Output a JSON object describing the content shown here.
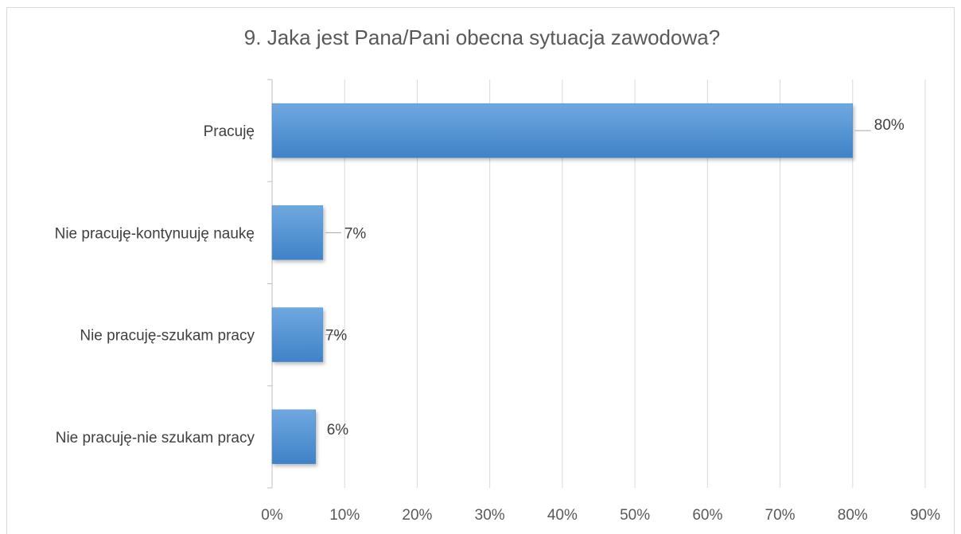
{
  "chart_data": {
    "type": "bar",
    "orientation": "horizontal",
    "title": "9. Jaka jest Pana/Pani obecna sytuacja zawodowa?",
    "categories": [
      "Pracuję",
      "Nie pracuję-kontynuuję naukę",
      "Nie pracuję-szukam pracy",
      "Nie pracuję-nie szukam pracy"
    ],
    "values": [
      80,
      7,
      7,
      6
    ],
    "data_labels": [
      "80%",
      "7%",
      "7%",
      "6%"
    ],
    "xlim": [
      0,
      90
    ],
    "x_ticks": [
      "0%",
      "10%",
      "20%",
      "30%",
      "40%",
      "50%",
      "60%",
      "70%",
      "80%",
      "90%"
    ],
    "xlabel": "",
    "ylabel": "",
    "grid": true,
    "legend": "none",
    "bar_color": "#5b9bd5"
  }
}
